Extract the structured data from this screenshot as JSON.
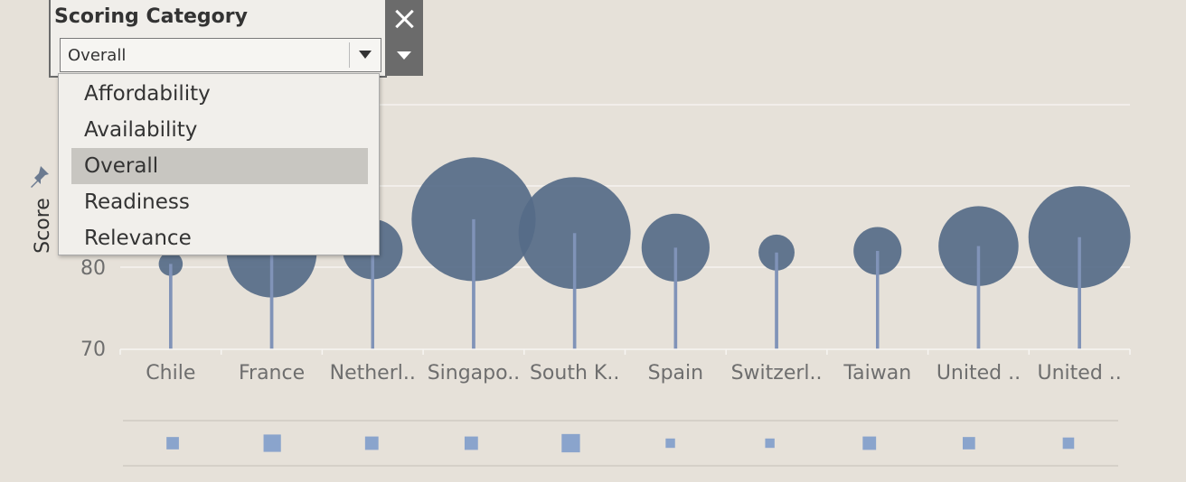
{
  "filter": {
    "title": "Scoring Category",
    "selected": "Overall",
    "options": [
      "Affordability",
      "Availability",
      "Overall",
      "Readiness",
      "Relevance"
    ],
    "icons": {
      "close": "close-icon",
      "menu": "chevron-down-icon",
      "pin": "pin-icon"
    }
  },
  "chart_data": {
    "type": "scatter",
    "ylabel": "Score",
    "yticks": [
      70,
      80
    ],
    "categories": [
      "Chile",
      "France",
      "Netherl..",
      "Singapo..",
      "South K..",
      "Spain",
      "Switzerl..",
      "Taiwan",
      "United ..",
      "United .."
    ],
    "values": [
      80.4,
      81.8,
      82.2,
      85.9,
      84.2,
      82.4,
      81.8,
      82.0,
      82.6,
      83.7
    ],
    "bubble_size": [
      0.12,
      0.45,
      0.3,
      0.62,
      0.56,
      0.34,
      0.18,
      0.24,
      0.4,
      0.51
    ],
    "secondary_marks": [
      0.35,
      0.6,
      0.4,
      0.4,
      0.65,
      0.2,
      0.2,
      0.4,
      0.35,
      0.3
    ],
    "colors": {
      "bubble": "#566b88",
      "stem": "#8093b8",
      "square": "#8aa4cc",
      "grid": "#f5f3ef"
    }
  }
}
